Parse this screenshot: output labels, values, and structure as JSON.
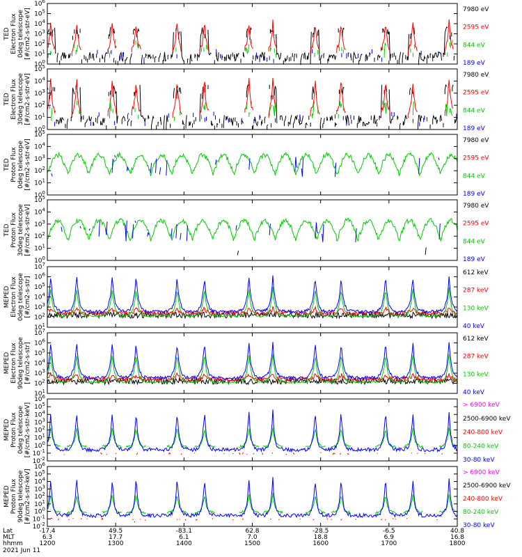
{
  "chart_data": {
    "type": "line",
    "panels": [
      {
        "ylabel": [
          "TED",
          "Electron Flux",
          "0deg telescope",
          "[#/cm2-s-str-eV]"
        ],
        "ymin_exp": 0,
        "ymax_exp": 6,
        "channels": [
          {
            "label": "7980 eV",
            "color": "#000000"
          },
          {
            "label": "2595 eV",
            "color": "#ff0000"
          },
          {
            "label": "844 eV",
            "color": "#00cc00"
          },
          {
            "label": "189 eV",
            "color": "#0000ff"
          }
        ]
      },
      {
        "ylabel": [
          "TED",
          "Electron Flux",
          "30deg telescope",
          "[#/cm2-s-str-eV]"
        ],
        "ymin_exp": 0,
        "ymax_exp": 5,
        "channels": [
          {
            "label": "7980 eV",
            "color": "#000000"
          },
          {
            "label": "2595 eV",
            "color": "#ff0000"
          },
          {
            "label": "844 eV",
            "color": "#00cc00"
          },
          {
            "label": "189 eV",
            "color": "#0000ff"
          }
        ]
      },
      {
        "ylabel": [
          "TED",
          "Proton Flux",
          "0deg telescope",
          "[#/cm2-s-str-eV]"
        ],
        "ymin_exp": 0,
        "ymax_exp": 5,
        "channels": [
          {
            "label": "7980 eV",
            "color": "#000000"
          },
          {
            "label": "2595 eV",
            "color": "#ff0000"
          },
          {
            "label": "844 eV",
            "color": "#00cc00"
          },
          {
            "label": "189 eV",
            "color": "#0000ff"
          }
        ]
      },
      {
        "ylabel": [
          "TED",
          "Proton Flux",
          "30deg telescope",
          "[#/cm2-s-str-eV]"
        ],
        "ymin_exp": 0,
        "ymax_exp": 5,
        "channels": [
          {
            "label": "7980 eV",
            "color": "#000000"
          },
          {
            "label": "2595 eV",
            "color": "#ff0000"
          },
          {
            "label": "844 eV",
            "color": "#00cc00"
          },
          {
            "label": "189 eV",
            "color": "#0000ff"
          }
        ]
      },
      {
        "ylabel": [
          "MEPED",
          "Electron Flux",
          "0deg telescope",
          "[#/cm2-s-str]"
        ],
        "ymin_exp": 1,
        "ymax_exp": 7,
        "channels": [
          {
            "label": "612 keV",
            "color": "#000000"
          },
          {
            "label": "287 keV",
            "color": "#ff0000"
          },
          {
            "label": "130 keV",
            "color": "#00cc00"
          },
          {
            "label": "40 keV",
            "color": "#0000ff"
          }
        ]
      },
      {
        "ylabel": [
          "MEPED",
          "Electron Flux",
          "90deg telescope",
          "[#/cm2-s-str]"
        ],
        "ymin_exp": 1,
        "ymax_exp": 7,
        "channels": [
          {
            "label": "612 keV",
            "color": "#000000"
          },
          {
            "label": "287 keV",
            "color": "#ff0000"
          },
          {
            "label": "130 keV",
            "color": "#00cc00"
          },
          {
            "label": "40 keV",
            "color": "#0000ff"
          }
        ]
      },
      {
        "ylabel": [
          "MEPED",
          "Proton Flux",
          "0deg telescope",
          "[#/cm2-s-str-keV]"
        ],
        "ymin_exp": -2,
        "ymax_exp": 6,
        "channels": [
          {
            "label": "> 6900 keV",
            "color": "#ff00ff"
          },
          {
            "label": "2500-6900 keV",
            "color": "#000000"
          },
          {
            "label": "240-800 keV",
            "color": "#ff0000"
          },
          {
            "label": "80-240 keV",
            "color": "#00cc00"
          },
          {
            "label": "30-80 keV",
            "color": "#0000ff"
          }
        ]
      },
      {
        "ylabel": [
          "MEPED",
          "Proton Flux",
          "90deg telescope",
          "[#/cm2-s-str-keV]"
        ],
        "ymin_exp": -2,
        "ymax_exp": 6,
        "channels": [
          {
            "label": "> 6900 keV",
            "color": "#ff00ff"
          },
          {
            "label": "2500-6900 keV",
            "color": "#000000"
          },
          {
            "label": "240-800 keV",
            "color": "#ff0000"
          },
          {
            "label": "80-240 keV",
            "color": "#00cc00"
          },
          {
            "label": "30-80 keV",
            "color": "#0000ff"
          }
        ]
      }
    ],
    "x_axis": {
      "row_labels": [
        "Lat",
        "MLT",
        "hhmm",
        "2021 Jun 11"
      ],
      "ticks": [
        {
          "hhmm": "1200",
          "lat": "-17.4",
          "mlt": "6.3"
        },
        {
          "hhmm": "1300",
          "lat": "49.5",
          "mlt": "17.7"
        },
        {
          "hhmm": "1400",
          "lat": "-83.1",
          "mlt": "6.1"
        },
        {
          "hhmm": "1500",
          "lat": "62.8",
          "mlt": "7.0"
        },
        {
          "hhmm": "1600",
          "lat": "-28.5",
          "mlt": "18.8"
        },
        {
          "hhmm": "1700",
          "lat": "-6.5",
          "mlt": "6.9"
        },
        {
          "hhmm": "1800",
          "lat": "40.8",
          "mlt": "16.8"
        }
      ]
    }
  }
}
